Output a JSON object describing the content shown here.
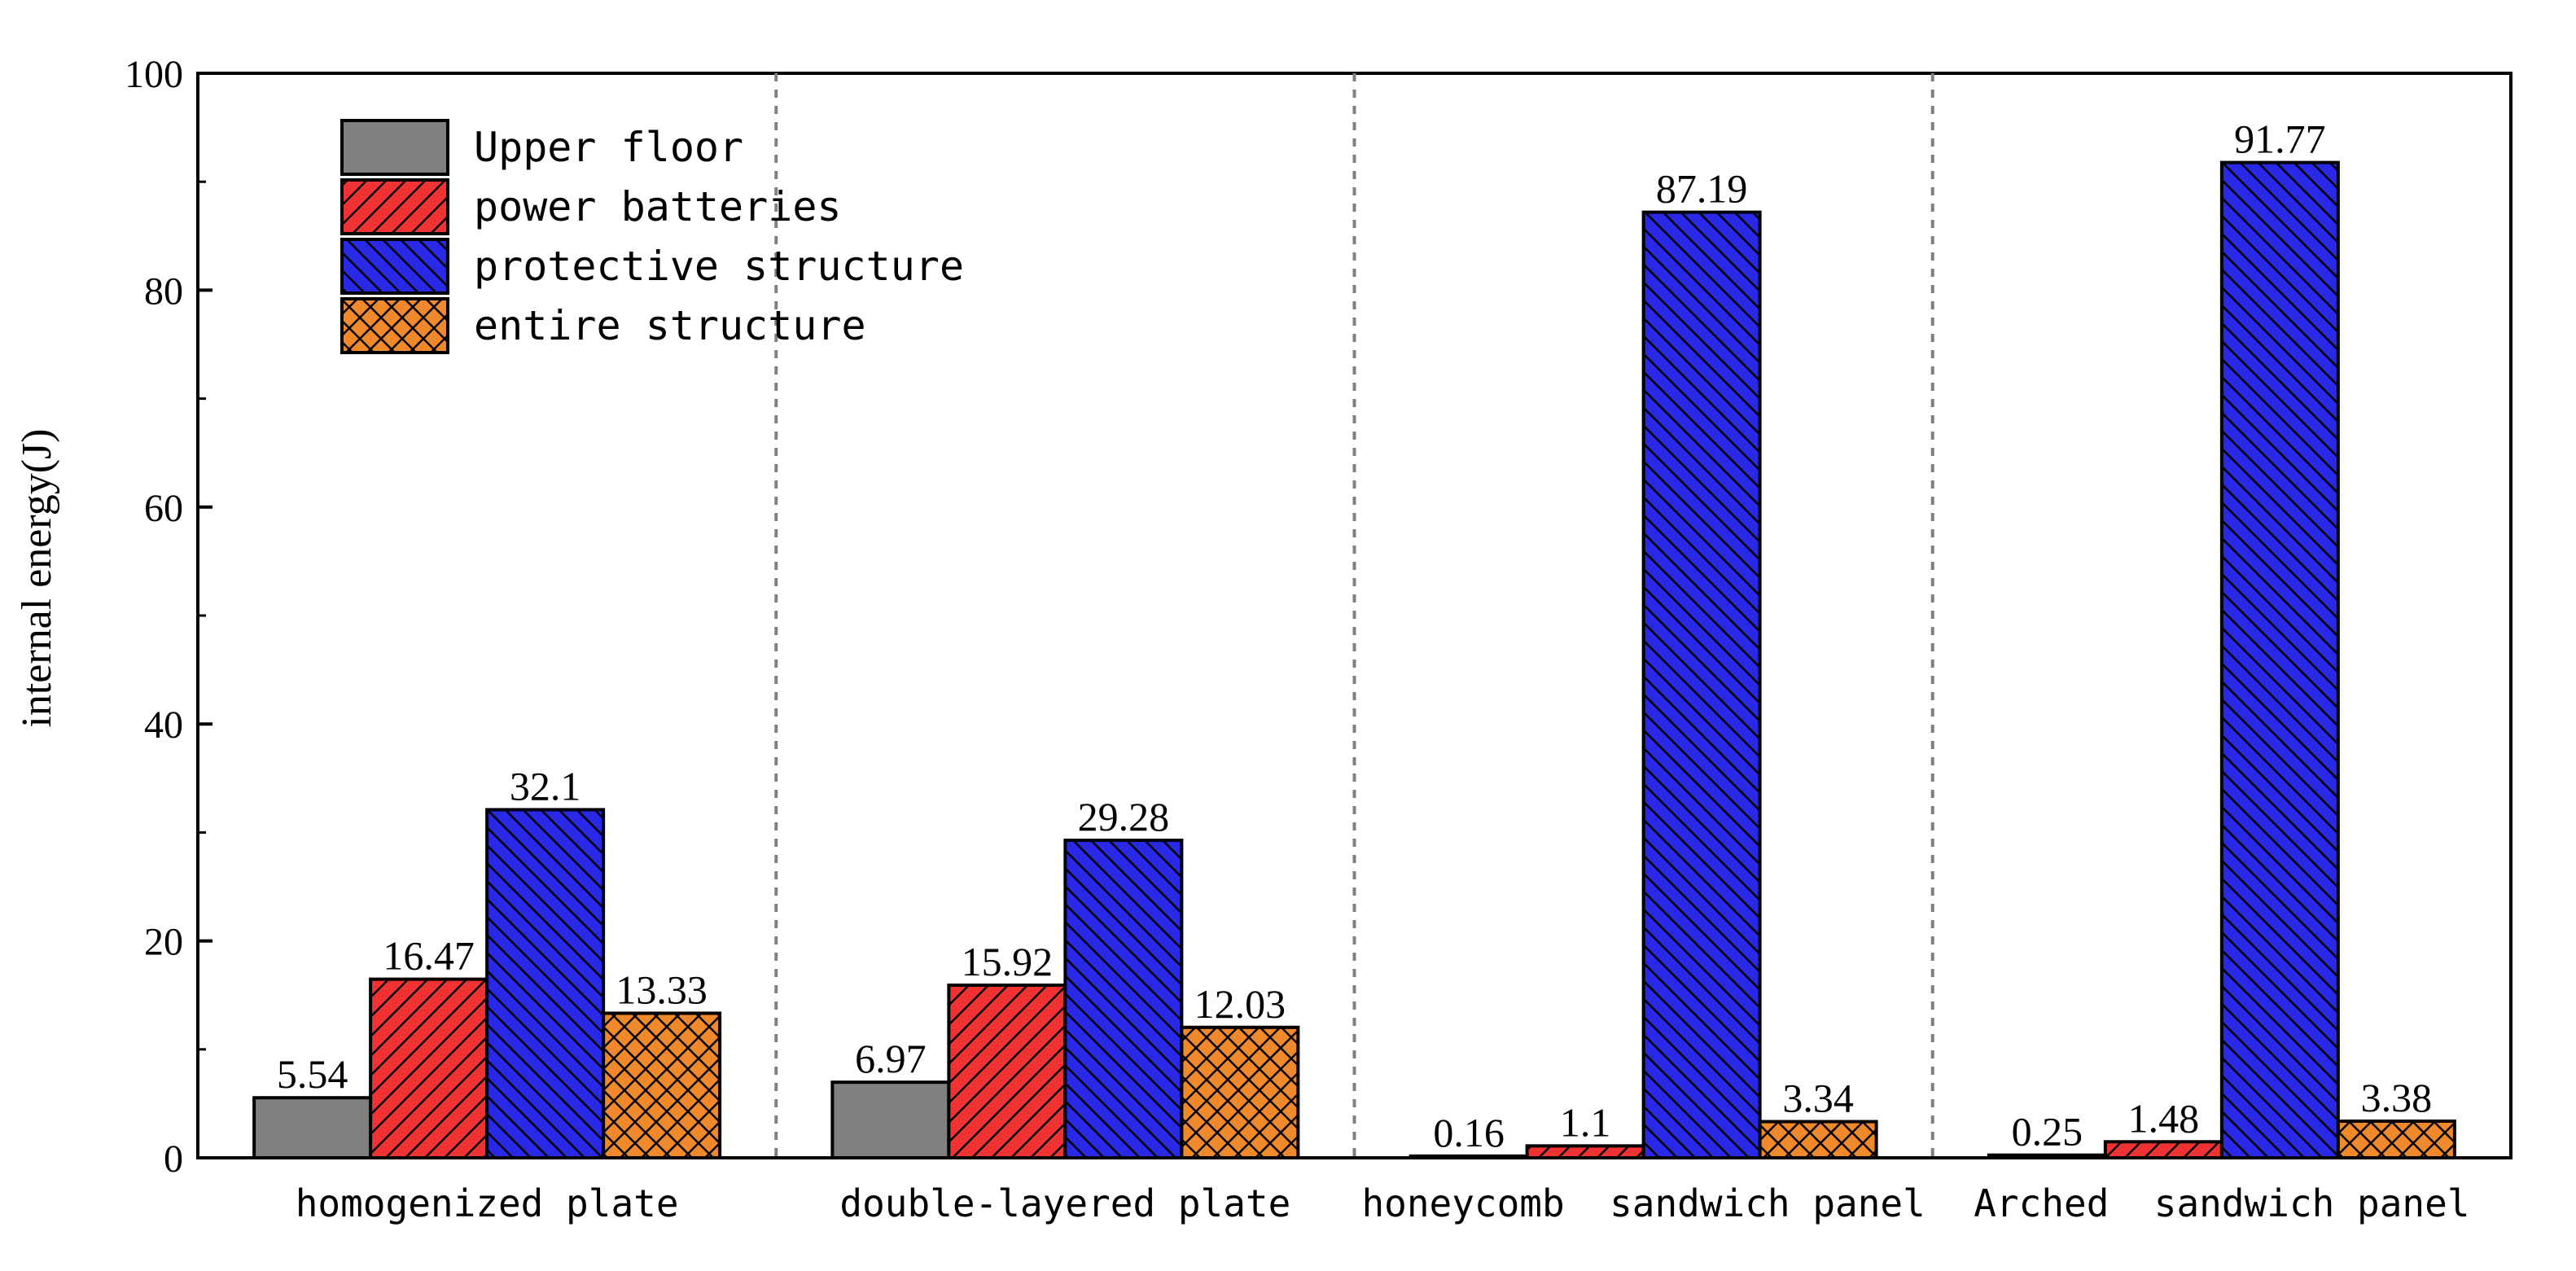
{
  "chart_data": {
    "type": "bar",
    "ylabel": "internal energy(J)",
    "ylim": [
      0,
      100
    ],
    "yticks": [
      "0",
      "20",
      "40",
      "60",
      "80",
      "100"
    ],
    "categories": [
      "homogenized plate",
      "double-layered plate",
      "honeycomb  sandwich panel",
      "Arched  sandwich panel"
    ],
    "series": [
      {
        "name": "Upper floor",
        "values": [
          5.54,
          6.97,
          0.16,
          0.25
        ],
        "labels": [
          "5.54",
          "6.97",
          "0.16",
          "0.25"
        ],
        "color": "#808080",
        "pattern": "none"
      },
      {
        "name": "power batteries",
        "values": [
          16.47,
          15.92,
          1.1,
          1.48
        ],
        "labels": [
          "16.47",
          "15.92",
          "1.1",
          "1.48"
        ],
        "color": "#f03232",
        "pattern": "diagonal-up"
      },
      {
        "name": "protective structure",
        "values": [
          32.1,
          29.28,
          87.19,
          91.77
        ],
        "labels": [
          "32.1",
          "29.28",
          "87.19",
          "91.77"
        ],
        "color": "#2828e6",
        "pattern": "diagonal-down"
      },
      {
        "name": "entire structure",
        "values": [
          13.33,
          12.03,
          3.34,
          3.38
        ],
        "labels": [
          "13.33",
          "12.03",
          "3.34",
          "3.38"
        ],
        "color": "#f0882c",
        "pattern": "crosshatch"
      }
    ],
    "legend": "top-left",
    "grid": false,
    "group_separators": "dashed-vertical"
  }
}
